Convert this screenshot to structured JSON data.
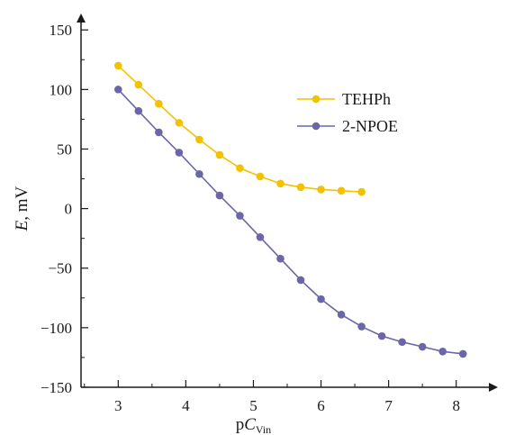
{
  "chart_data": {
    "type": "line",
    "xlabel_parts": {
      "prefix": "p",
      "variable": "C",
      "subscript": "Vin"
    },
    "ylabel_parts": {
      "variable": "E",
      "unit": ", mV"
    },
    "xlim": [
      2.45,
      8.55
    ],
    "ylim": [
      -150,
      160
    ],
    "xticks": [
      "3",
      "4",
      "5",
      "6",
      "7",
      "8"
    ],
    "yticks": [
      "150",
      "100",
      "50",
      "0",
      "−50",
      "−100",
      "−150"
    ],
    "ytick_values": [
      150,
      100,
      50,
      0,
      -50,
      -100,
      -150
    ],
    "xtick_values": [
      3,
      4,
      5,
      6,
      7,
      8
    ],
    "grid": false,
    "legend_position": "upper-right",
    "series": [
      {
        "name": "TEHPh",
        "color": "#f2c200",
        "x": [
          3.0,
          3.3,
          3.6,
          3.9,
          4.2,
          4.5,
          4.8,
          5.1,
          5.4,
          5.7,
          6.0,
          6.3,
          6.6
        ],
        "y": [
          120,
          104,
          88,
          72,
          58,
          45,
          34,
          27,
          21,
          18,
          16,
          15,
          14
        ]
      },
      {
        "name": "2-NPOE",
        "color": "#6b66a8",
        "x": [
          3.0,
          3.3,
          3.6,
          3.9,
          4.2,
          4.5,
          4.8,
          5.1,
          5.4,
          5.7,
          6.0,
          6.3,
          6.6,
          6.9,
          7.2,
          7.5,
          7.8,
          8.1
        ],
        "y": [
          100,
          82,
          64,
          47,
          29,
          11,
          -6,
          -24,
          -42,
          -60,
          -76,
          -89,
          -99,
          -107,
          -112,
          -116,
          -120,
          -122
        ]
      }
    ]
  }
}
